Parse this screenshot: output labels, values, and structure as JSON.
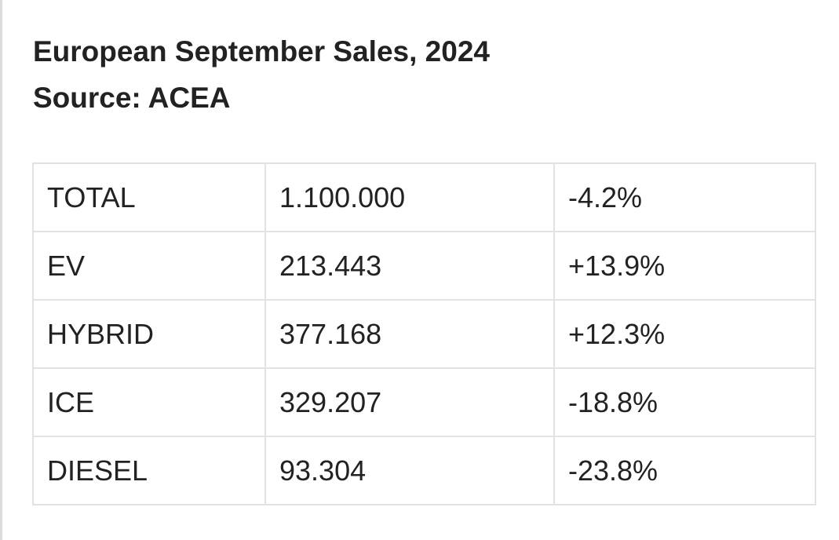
{
  "heading": {
    "title": "European September Sales, 2024",
    "source": "Source: ACEA"
  },
  "table": {
    "rows": [
      {
        "category": "TOTAL",
        "units": "1.100.000",
        "change": "-4.2%"
      },
      {
        "category": "EV",
        "units": "213.443",
        "change": "+13.9%"
      },
      {
        "category": "HYBRID",
        "units": "377.168",
        "change": "+12.3%"
      },
      {
        "category": "ICE",
        "units": "329.207",
        "change": "-18.8%"
      },
      {
        "category": "DIESEL",
        "units": "93.304",
        "change": "-23.8%"
      }
    ]
  }
}
